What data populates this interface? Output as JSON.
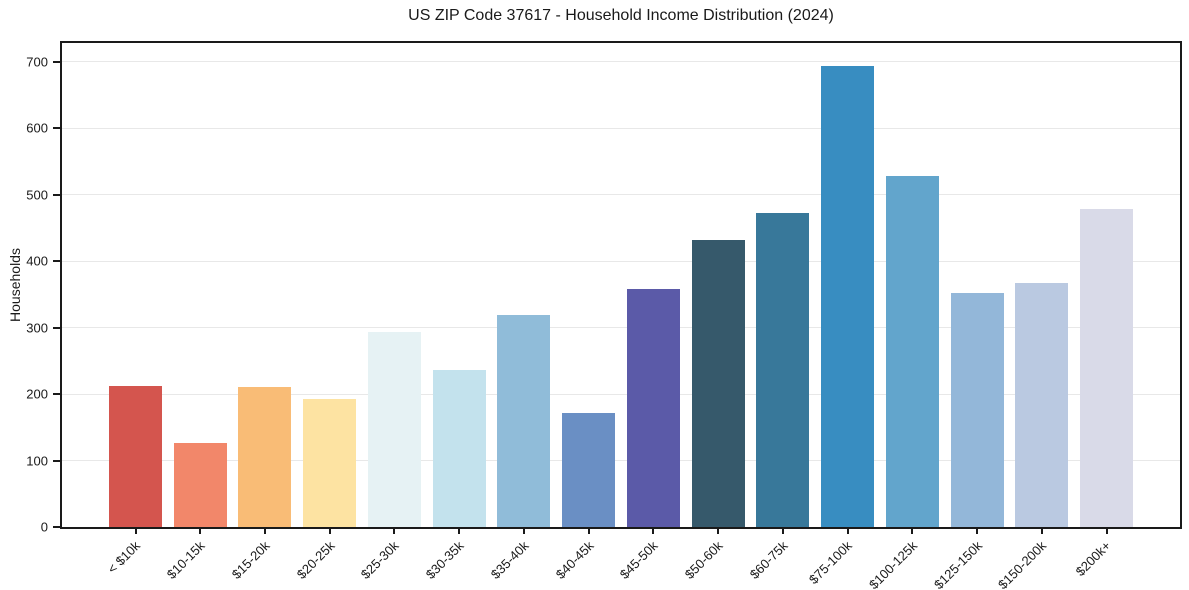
{
  "chart_data": {
    "type": "bar",
    "title": "US ZIP Code 37617 - Household Income Distribution (2024)",
    "xlabel": "",
    "ylabel": "Households",
    "categories": [
      "< $10k",
      "$10-15k",
      "$15-20k",
      "$20-25k",
      "$25-30k",
      "$30-35k",
      "$35-40k",
      "$40-45k",
      "$45-50k",
      "$50-60k",
      "$60-75k",
      "$75-100k",
      "$100-125k",
      "$125-150k",
      "$150-200k",
      "$200k+"
    ],
    "values": [
      212,
      126,
      211,
      192,
      293,
      236,
      319,
      171,
      358,
      432,
      472,
      693,
      528,
      352,
      367,
      478
    ],
    "bar_colors": [
      "#d4554e",
      "#f2876a",
      "#f9bc76",
      "#fde3a2",
      "#e6f2f4",
      "#c3e2ed",
      "#90bcd9",
      "#6a8fc4",
      "#5b5aa8",
      "#36596b",
      "#38789a",
      "#388dc1",
      "#62a5cc",
      "#93b7d9",
      "#bac9e1",
      "#d9dae8"
    ],
    "ylim": [
      0,
      728
    ],
    "yticks": [
      0,
      100,
      200,
      300,
      400,
      500,
      600,
      700
    ],
    "grid": "horizontal",
    "legend": "none",
    "grid_color": "#e8e8e8",
    "spine_color": "#1a1a1a",
    "text_color": "#1a1a1a",
    "background_color": "#ffffff"
  }
}
